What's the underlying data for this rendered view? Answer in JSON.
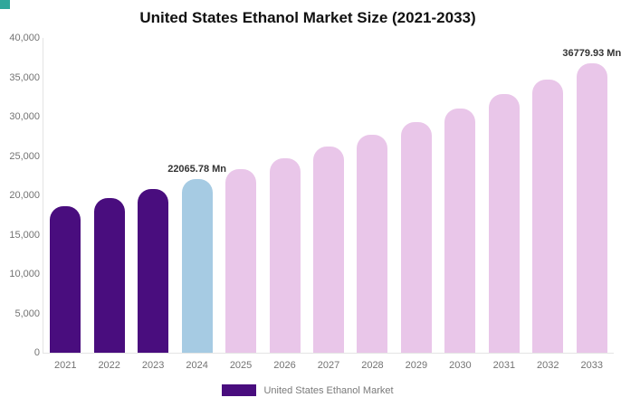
{
  "legend": {
    "label": "United States Ethanol Market",
    "swatch_color": "#490d7e"
  },
  "chart_data": {
    "type": "bar",
    "title": "United States Ethanol Market Size (2021-2033)",
    "series_name": "United States Ethanol Market",
    "categories": [
      "2021",
      "2022",
      "2023",
      "2024",
      "2025",
      "2026",
      "2027",
      "2028",
      "2029",
      "2030",
      "2031",
      "2032",
      "2033"
    ],
    "values": [
      18611,
      19698,
      20848,
      22065.78,
      23354,
      24718,
      26162,
      27690,
      29307,
      31019,
      32831,
      34748,
      36779.93
    ],
    "ylim": [
      0,
      40000
    ],
    "ytick_values": [
      0,
      5000,
      10000,
      15000,
      20000,
      25000,
      30000,
      35000,
      40000
    ],
    "ytick_labels": [
      "0",
      "5,000",
      "10,000",
      "15,000",
      "20,000",
      "25,000",
      "30,000",
      "35,000",
      "40,000"
    ],
    "bar_colors": [
      "#490d7e",
      "#490d7e",
      "#490d7e",
      "#a6cbe3",
      "#e9c6e9",
      "#e9c6e9",
      "#e9c6e9",
      "#e9c6e9",
      "#e9c6e9",
      "#e9c6e9",
      "#e9c6e9",
      "#e9c6e9",
      "#e9c6e9"
    ],
    "annotations": [
      {
        "index": 3,
        "text": "22065.78 Mn"
      },
      {
        "index": 12,
        "text": "36779.93 Mn"
      }
    ],
    "legend_position": "bottom",
    "grid": false,
    "colors": {
      "dark_purple": "#490d7e",
      "light_blue": "#a6cbe3",
      "pink": "#e9c6e9",
      "accent_teal": "#2fa79b",
      "axis_text": "#737373",
      "annotation_text": "#333333",
      "axis_line": "#e4e4e4"
    }
  }
}
